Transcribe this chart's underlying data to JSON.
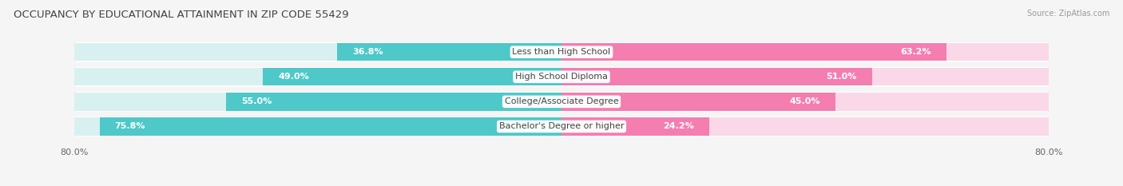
{
  "title": "OCCUPANCY BY EDUCATIONAL ATTAINMENT IN ZIP CODE 55429",
  "source": "Source: ZipAtlas.com",
  "categories": [
    "Less than High School",
    "High School Diploma",
    "College/Associate Degree",
    "Bachelor's Degree or higher"
  ],
  "owner_values": [
    36.8,
    49.0,
    55.0,
    75.8
  ],
  "renter_values": [
    63.2,
    51.0,
    45.0,
    24.2
  ],
  "owner_color": "#4EC8C8",
  "renter_color": "#F47EB0",
  "owner_bg_color": "#D8F0F0",
  "renter_bg_color": "#FAD8E8",
  "row_bg_color": "#EFEFEF",
  "background_color": "#F5F5F5",
  "separator_color": "#FFFFFF",
  "axis_label": "80.0%",
  "title_fontsize": 9.5,
  "label_fontsize": 8,
  "value_fontsize": 8,
  "bar_height": 0.72,
  "max_val": 80.0
}
